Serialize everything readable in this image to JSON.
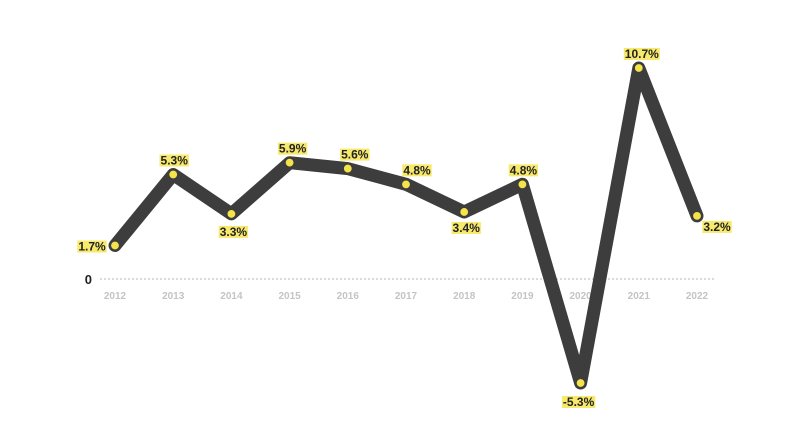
{
  "chart_data": {
    "type": "line",
    "title": "",
    "xlabel": "",
    "ylabel": "",
    "categories": [
      "2012",
      "2013",
      "2014",
      "2015",
      "2016",
      "2017",
      "2018",
      "2019",
      "2020",
      "2021",
      "2022"
    ],
    "series": [
      {
        "values": [
          1.7,
          5.3,
          3.3,
          5.9,
          5.6,
          4.8,
          3.4,
          4.8,
          -5.3,
          10.7,
          3.2
        ],
        "labels": [
          "1.7%",
          "5.3%",
          "3.3%",
          "5.9%",
          "5.6%",
          "4.8%",
          "3.4%",
          "4.8%",
          "-5.3%",
          "10.7%",
          "3.2%"
        ]
      }
    ],
    "ylim": [
      -5.3,
      10.7
    ],
    "zero_label": "0",
    "grid": false,
    "colors": {
      "line": "#3d3d3d",
      "marker": "#f5e34a",
      "label_highlight": "#f7e96b",
      "zero_line": "#b5b5b5",
      "tick_text": "#c4c4c4"
    }
  }
}
